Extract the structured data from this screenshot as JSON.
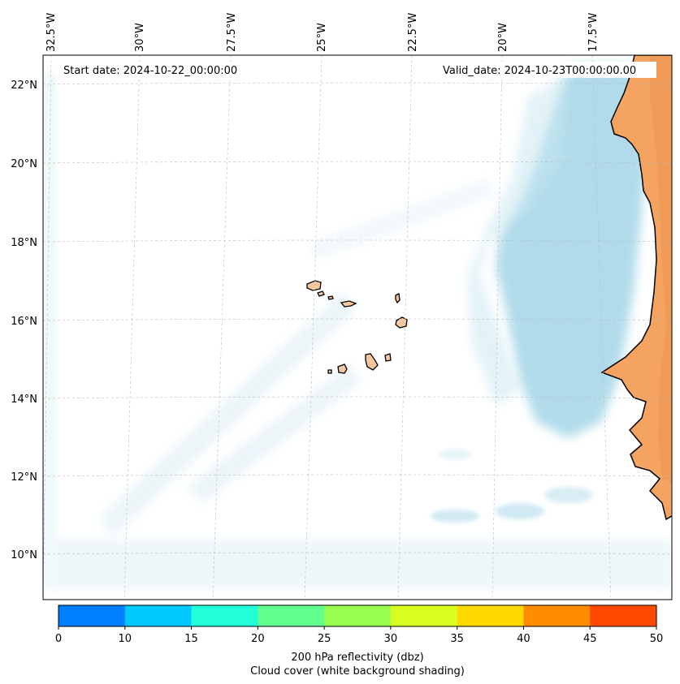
{
  "map": {
    "start_date_text": "Start date: 2024-10-22_00:00:00",
    "valid_date_text": "Valid_date: 2024-10-23T00:00:00.00",
    "lon_labels": [
      "32.5°W",
      "30°W",
      "27.5°W",
      "25°W",
      "22.5°W",
      "20°W",
      "17.5°W"
    ],
    "lat_labels": [
      "22°N",
      "20°N",
      "18°N",
      "16°N",
      "14°N",
      "12°N",
      "10°N"
    ],
    "ocean_color": "#ffffff",
    "cloud_color": "#a9d8e8",
    "land_color": "#f4a460",
    "coastline_color": "#000000",
    "gridline_color": "#bbbbbb"
  },
  "colorbar": {
    "ticks": [
      "0",
      "10",
      "15",
      "20",
      "25",
      "30",
      "35",
      "40",
      "45",
      "50"
    ],
    "colors": [
      "#0080ff",
      "#00c8ff",
      "#20ffd8",
      "#60ff90",
      "#98ff50",
      "#d8ff20",
      "#ffd800",
      "#ff8c00",
      "#ff4800"
    ],
    "label_line1": "200 hPa reflectivity (dbz)",
    "label_line2": "Cloud cover (white background shading)"
  }
}
